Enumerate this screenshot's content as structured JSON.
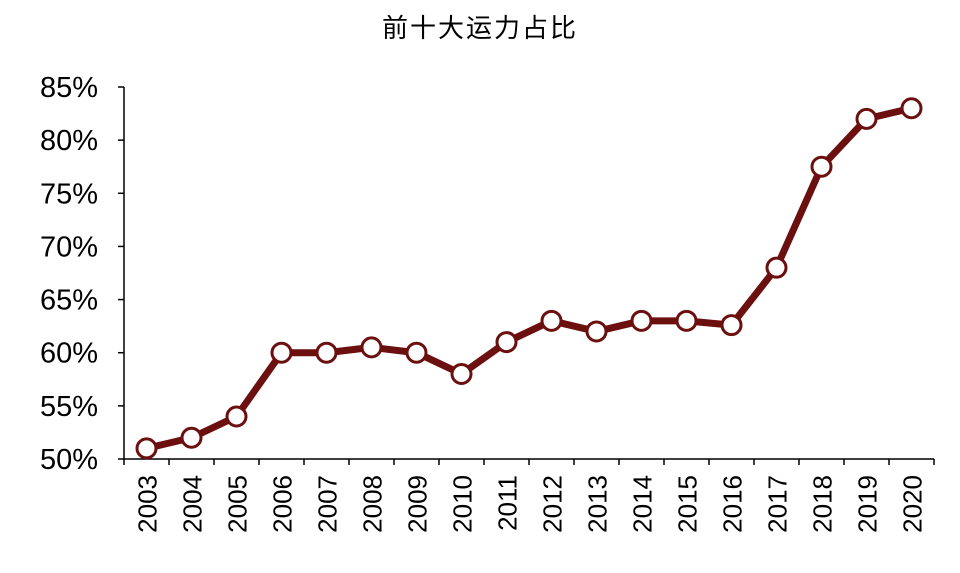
{
  "chart_data": {
    "type": "line",
    "title": "前十大运力占比",
    "xlabel": "",
    "ylabel": "",
    "categories": [
      "2003",
      "2004",
      "2005",
      "2006",
      "2007",
      "2008",
      "2009",
      "2010",
      "2011",
      "2012",
      "2013",
      "2014",
      "2015",
      "2016",
      "2017",
      "2018",
      "2019",
      "2020"
    ],
    "series": [
      {
        "values": [
          0.51,
          0.52,
          0.54,
          0.6,
          0.6,
          0.605,
          0.6,
          0.58,
          0.61,
          0.63,
          0.62,
          0.63,
          0.63,
          0.626,
          0.68,
          0.775,
          0.82,
          0.83
        ]
      }
    ],
    "ylim": [
      0.5,
      0.85
    ],
    "yticks": [
      0.5,
      0.55,
      0.6,
      0.65,
      0.7,
      0.75,
      0.8,
      0.85
    ],
    "ytick_labels": [
      "50%",
      "55%",
      "60%",
      "65%",
      "70%",
      "75%",
      "80%",
      "85%"
    ],
    "grid": false,
    "legend": "none",
    "colors": {
      "line": "#6b0f0f",
      "marker_fill": "#ffffff",
      "axis": "#000000"
    }
  }
}
